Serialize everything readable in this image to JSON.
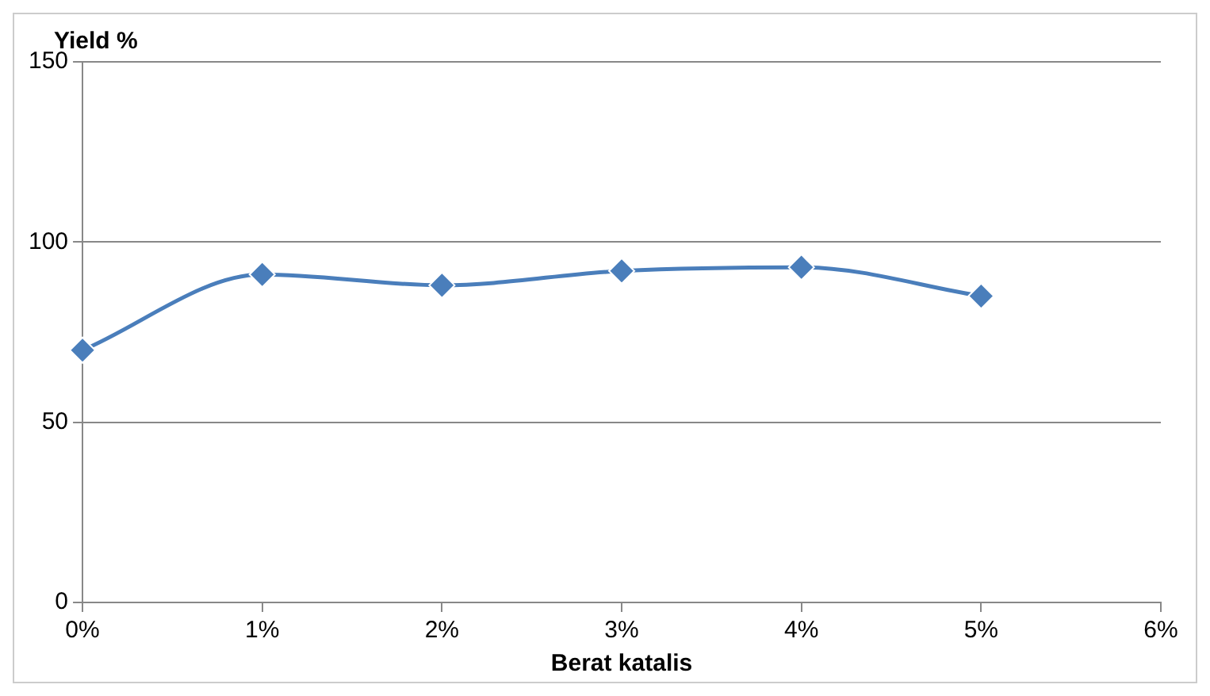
{
  "chart_data": {
    "type": "line",
    "ylabel": "Yield %",
    "xlabel": "Berat katalis",
    "x": [
      0,
      1,
      2,
      3,
      4,
      5
    ],
    "series": [
      {
        "color": "#4a7ebb",
        "values": [
          70,
          91,
          88,
          92,
          93,
          85
        ]
      }
    ],
    "xlim": [
      0,
      6
    ],
    "xticks": [
      {
        "value": 0,
        "label": "0%"
      },
      {
        "value": 1,
        "label": "1%"
      },
      {
        "value": 2,
        "label": "2%"
      },
      {
        "value": 3,
        "label": "3%"
      },
      {
        "value": 4,
        "label": "4%"
      },
      {
        "value": 5,
        "label": "5%"
      },
      {
        "value": 6,
        "label": "6%"
      }
    ],
    "ylim": [
      0,
      150
    ],
    "yticks": [
      0,
      50,
      100,
      150
    ],
    "grid": "y",
    "legend": false,
    "marker": "diamond",
    "line_style": "solid"
  }
}
